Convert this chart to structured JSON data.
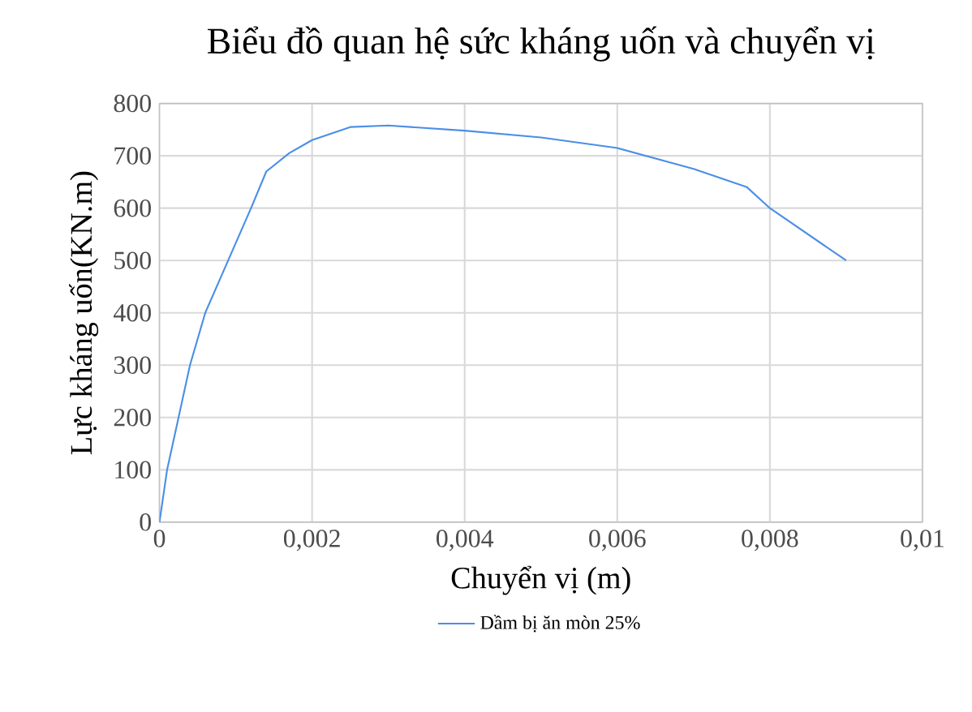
{
  "chart_data": {
    "type": "line",
    "title": "Biểu đồ quan hệ sức kháng uốn và chuyển vị",
    "xlabel": "Chuyển vị (m)",
    "ylabel": "Lực kháng uốn(KN.m)",
    "x": [
      0,
      0.0001,
      0.0004,
      0.0006,
      0.0009,
      0.0012,
      0.0014,
      0.0017,
      0.002,
      0.0025,
      0.003,
      0.004,
      0.005,
      0.006,
      0.007,
      0.0077,
      0.008,
      0.009
    ],
    "series": [
      {
        "name": "Dầm bị ăn mòn 25%",
        "color": "#4a8fe7",
        "values": [
          0,
          100,
          300,
          400,
          500,
          600,
          670,
          705,
          730,
          755,
          758,
          748,
          735,
          715,
          675,
          640,
          600,
          500
        ]
      }
    ],
    "xlim": [
      0,
      0.01
    ],
    "xticks": [
      {
        "value": 0,
        "label": "0"
      },
      {
        "value": 0.002,
        "label": "0,002"
      },
      {
        "value": 0.004,
        "label": "0,004"
      },
      {
        "value": 0.006,
        "label": "0,006"
      },
      {
        "value": 0.008,
        "label": "0,008"
      },
      {
        "value": 0.01,
        "label": "0,01"
      }
    ],
    "ylim": [
      0,
      800
    ],
    "yticks": [
      0,
      100,
      200,
      300,
      400,
      500,
      600,
      700,
      800
    ],
    "grid": true,
    "legend": "bottom",
    "marker": "none",
    "line_style": "solid"
  }
}
